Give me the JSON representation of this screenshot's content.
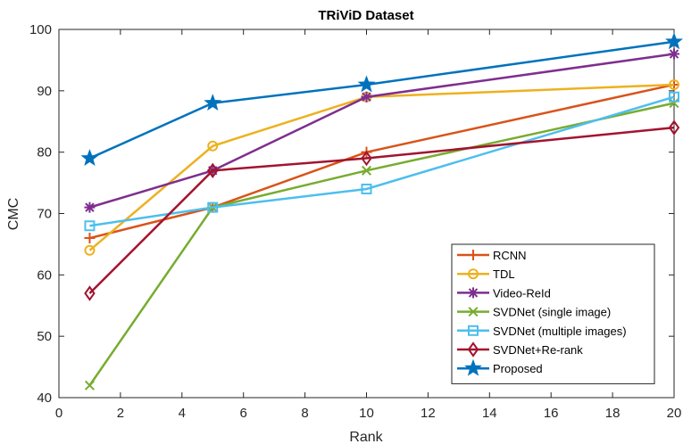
{
  "chart_data": {
    "type": "line",
    "title": "TRiViD Dataset",
    "xlabel": "Rank",
    "ylabel": "CMC",
    "xlim": [
      0,
      20
    ],
    "ylim": [
      40,
      100
    ],
    "xticks": [
      0,
      2,
      4,
      6,
      8,
      10,
      12,
      14,
      16,
      18,
      20
    ],
    "yticks": [
      40,
      50,
      60,
      70,
      80,
      90,
      100
    ],
    "grid": false,
    "legend_position": "bottom-right",
    "x": [
      1,
      5,
      10,
      20
    ],
    "series": [
      {
        "name": "RCNN",
        "values": [
          66,
          71,
          80,
          91
        ],
        "color": "#D95319",
        "marker": "plus"
      },
      {
        "name": "TDL",
        "values": [
          64,
          81,
          89,
          91
        ],
        "color": "#EDB120",
        "marker": "circle"
      },
      {
        "name": "Video-ReId",
        "values": [
          71,
          77,
          89,
          96
        ],
        "color": "#7E2F8E",
        "marker": "asterisk"
      },
      {
        "name": "SVDNet (single image)",
        "values": [
          42,
          71,
          77,
          88
        ],
        "color": "#77AC30",
        "marker": "x"
      },
      {
        "name": "SVDNet (multiple images)",
        "values": [
          68,
          71,
          74,
          89
        ],
        "color": "#4DBEEE",
        "marker": "square"
      },
      {
        "name": "SVDNet+Re-rank",
        "values": [
          57,
          77,
          79,
          84
        ],
        "color": "#A2142F",
        "marker": "diamond"
      },
      {
        "name": "Proposed",
        "values": [
          79,
          88,
          91,
          98
        ],
        "color": "#0072BD",
        "marker": "star"
      }
    ]
  }
}
